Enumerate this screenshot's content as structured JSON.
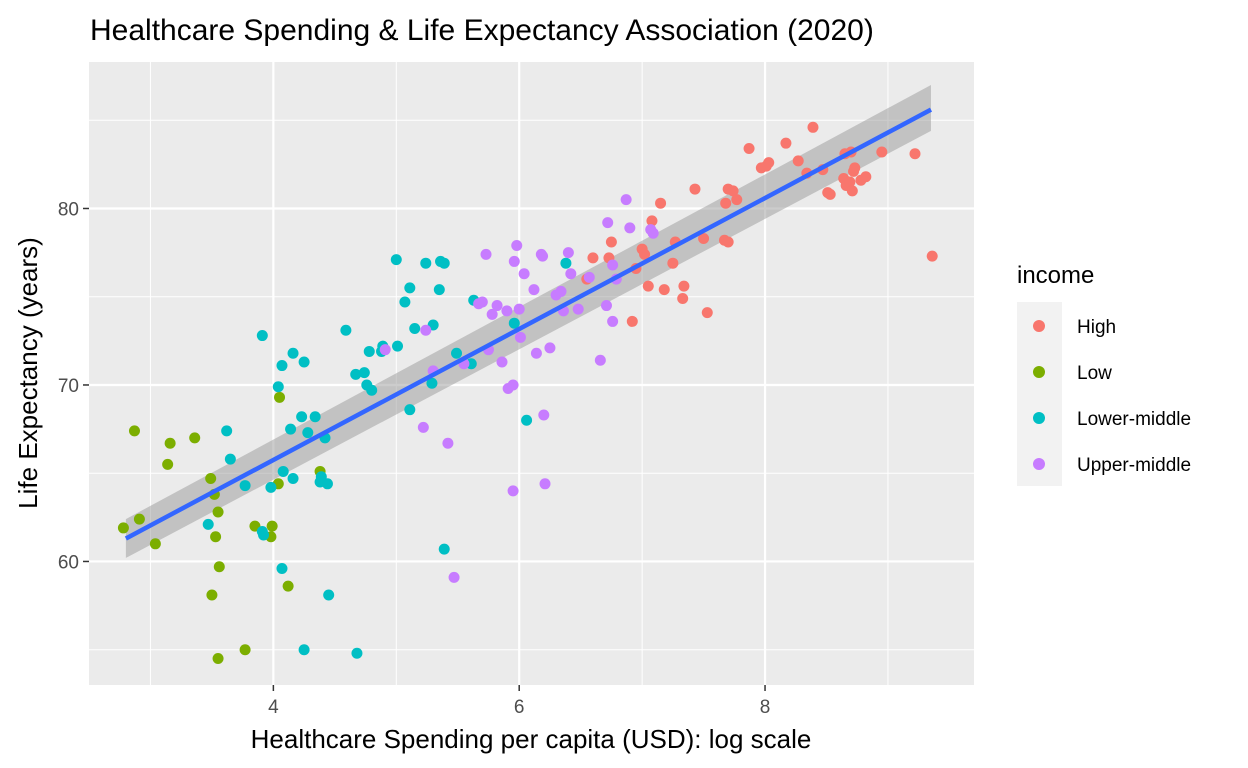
{
  "chart_data": {
    "type": "scatter",
    "title": "Healthcare Spending & Life Expectancy Association (2020)",
    "xlabel": "Healthcare Spending per capita (USD): log scale",
    "ylabel": "Life Expectancy (years)",
    "xlim": [
      2.5,
      9.7
    ],
    "ylim": [
      53,
      88.3
    ],
    "x_ticks": [
      4,
      6,
      8
    ],
    "y_ticks": [
      60,
      70,
      80
    ],
    "grid": true,
    "legend": {
      "title": "income",
      "placement": "right"
    },
    "series": [
      {
        "name": "High",
        "color": "#F8766D",
        "points": [
          [
            6.55,
            76.0
          ],
          [
            6.6,
            77.2
          ],
          [
            6.73,
            77.2
          ],
          [
            6.75,
            78.1
          ],
          [
            6.92,
            73.6
          ],
          [
            6.95,
            76.6
          ],
          [
            7.0,
            77.7
          ],
          [
            7.02,
            77.4
          ],
          [
            7.05,
            75.6
          ],
          [
            7.08,
            79.3
          ],
          [
            7.15,
            80.3
          ],
          [
            7.18,
            75.4
          ],
          [
            7.25,
            76.9
          ],
          [
            7.27,
            78.1
          ],
          [
            7.33,
            74.9
          ],
          [
            7.34,
            75.6
          ],
          [
            7.43,
            81.1
          ],
          [
            7.5,
            78.3
          ],
          [
            7.53,
            74.1
          ],
          [
            7.67,
            78.2
          ],
          [
            7.68,
            80.3
          ],
          [
            7.7,
            81.1
          ],
          [
            7.7,
            78.1
          ],
          [
            7.74,
            81.0
          ],
          [
            7.77,
            80.5
          ],
          [
            7.87,
            83.4
          ],
          [
            7.97,
            82.3
          ],
          [
            8.01,
            82.4
          ],
          [
            8.03,
            82.6
          ],
          [
            8.17,
            83.7
          ],
          [
            8.27,
            82.7
          ],
          [
            8.34,
            82.0
          ],
          [
            8.39,
            84.6
          ],
          [
            8.47,
            82.2
          ],
          [
            8.51,
            80.9
          ],
          [
            8.53,
            80.8
          ],
          [
            8.64,
            81.7
          ],
          [
            8.65,
            83.1
          ],
          [
            8.66,
            81.3
          ],
          [
            8.69,
            81.5
          ],
          [
            8.7,
            83.2
          ],
          [
            8.71,
            81.0
          ],
          [
            8.72,
            82.1
          ],
          [
            8.73,
            82.3
          ],
          [
            8.78,
            81.6
          ],
          [
            8.82,
            81.8
          ],
          [
            8.95,
            83.2
          ],
          [
            9.22,
            83.1
          ],
          [
            9.36,
            77.3
          ]
        ]
      },
      {
        "name": "Low",
        "color": "#7CAE00",
        "points": [
          [
            2.78,
            61.9
          ],
          [
            2.87,
            67.4
          ],
          [
            2.91,
            62.4
          ],
          [
            3.04,
            61.0
          ],
          [
            3.14,
            65.5
          ],
          [
            3.16,
            66.7
          ],
          [
            3.36,
            67.0
          ],
          [
            3.49,
            64.7
          ],
          [
            3.5,
            58.1
          ],
          [
            3.52,
            63.8
          ],
          [
            3.53,
            61.4
          ],
          [
            3.55,
            62.8
          ],
          [
            3.55,
            54.5
          ],
          [
            3.56,
            59.7
          ],
          [
            3.77,
            55.0
          ],
          [
            3.85,
            62.0
          ],
          [
            3.98,
            61.4
          ],
          [
            3.99,
            62.0
          ],
          [
            4.04,
            64.4
          ],
          [
            4.05,
            69.3
          ],
          [
            4.12,
            58.6
          ],
          [
            4.38,
            65.1
          ]
        ]
      },
      {
        "name": "Lower-middle",
        "color": "#00BFC4",
        "points": [
          [
            3.47,
            62.1
          ],
          [
            3.62,
            67.4
          ],
          [
            3.65,
            65.8
          ],
          [
            3.77,
            64.3
          ],
          [
            3.91,
            61.7
          ],
          [
            3.91,
            72.8
          ],
          [
            3.92,
            61.5
          ],
          [
            3.98,
            64.2
          ],
          [
            4.04,
            69.9
          ],
          [
            4.07,
            71.1
          ],
          [
            4.07,
            59.6
          ],
          [
            4.08,
            65.1
          ],
          [
            4.14,
            67.5
          ],
          [
            4.16,
            71.8
          ],
          [
            4.16,
            64.7
          ],
          [
            4.23,
            68.2
          ],
          [
            4.25,
            71.3
          ],
          [
            4.25,
            55.0
          ],
          [
            4.28,
            67.3
          ],
          [
            4.34,
            68.2
          ],
          [
            4.38,
            64.5
          ],
          [
            4.39,
            64.8
          ],
          [
            4.42,
            67.0
          ],
          [
            4.44,
            64.4
          ],
          [
            4.45,
            58.1
          ],
          [
            4.59,
            73.1
          ],
          [
            4.67,
            70.6
          ],
          [
            4.68,
            54.8
          ],
          [
            4.74,
            70.7
          ],
          [
            4.76,
            70.0
          ],
          [
            4.78,
            71.9
          ],
          [
            4.8,
            69.7
          ],
          [
            4.88,
            71.9
          ],
          [
            4.89,
            72.2
          ],
          [
            4.9,
            72.0
          ],
          [
            5.0,
            77.1
          ],
          [
            5.01,
            72.2
          ],
          [
            5.07,
            74.7
          ],
          [
            5.11,
            75.5
          ],
          [
            5.11,
            68.6
          ],
          [
            5.15,
            73.2
          ],
          [
            5.24,
            76.9
          ],
          [
            5.29,
            70.1
          ],
          [
            5.3,
            73.4
          ],
          [
            5.35,
            75.4
          ],
          [
            5.36,
            77.0
          ],
          [
            5.39,
            76.9
          ],
          [
            5.39,
            60.7
          ],
          [
            5.49,
            71.8
          ],
          [
            5.61,
            71.2
          ],
          [
            5.63,
            74.8
          ],
          [
            5.96,
            73.5
          ],
          [
            6.06,
            68.0
          ],
          [
            6.38,
            76.9
          ]
        ]
      },
      {
        "name": "Upper-middle",
        "color": "#C77CFF",
        "points": [
          [
            4.91,
            72.0
          ],
          [
            5.22,
            67.6
          ],
          [
            5.24,
            73.1
          ],
          [
            5.3,
            70.8
          ],
          [
            5.42,
            66.7
          ],
          [
            5.47,
            59.1
          ],
          [
            5.55,
            71.2
          ],
          [
            5.67,
            74.6
          ],
          [
            5.7,
            74.7
          ],
          [
            5.73,
            77.4
          ],
          [
            5.75,
            72.0
          ],
          [
            5.78,
            74.0
          ],
          [
            5.82,
            74.5
          ],
          [
            5.86,
            71.3
          ],
          [
            5.9,
            74.2
          ],
          [
            5.91,
            69.8
          ],
          [
            5.95,
            70.0
          ],
          [
            5.95,
            64.0
          ],
          [
            5.96,
            77.0
          ],
          [
            5.98,
            77.9
          ],
          [
            6.0,
            74.3
          ],
          [
            6.01,
            72.7
          ],
          [
            6.04,
            76.3
          ],
          [
            6.12,
            75.4
          ],
          [
            6.14,
            71.8
          ],
          [
            6.18,
            77.4
          ],
          [
            6.19,
            77.3
          ],
          [
            6.2,
            68.3
          ],
          [
            6.21,
            64.4
          ],
          [
            6.25,
            72.1
          ],
          [
            6.3,
            75.1
          ],
          [
            6.34,
            75.3
          ],
          [
            6.36,
            74.2
          ],
          [
            6.4,
            77.5
          ],
          [
            6.42,
            76.3
          ],
          [
            6.48,
            74.3
          ],
          [
            6.57,
            76.1
          ],
          [
            6.66,
            71.4
          ],
          [
            6.71,
            74.5
          ],
          [
            6.72,
            79.2
          ],
          [
            6.76,
            73.6
          ],
          [
            6.76,
            76.8
          ],
          [
            6.79,
            76.0
          ],
          [
            6.87,
            80.5
          ],
          [
            6.9,
            78.9
          ],
          [
            7.07,
            78.8
          ],
          [
            7.09,
            78.6
          ]
        ]
      }
    ],
    "trend": {
      "type": "linear",
      "x": [
        2.8,
        9.35
      ],
      "y": [
        61.3,
        85.6
      ],
      "band_low": [
        60.2,
        84.4
      ],
      "band_high": [
        62.4,
        87.0
      ],
      "color": "#3366FF",
      "band_color": "#999999"
    }
  }
}
